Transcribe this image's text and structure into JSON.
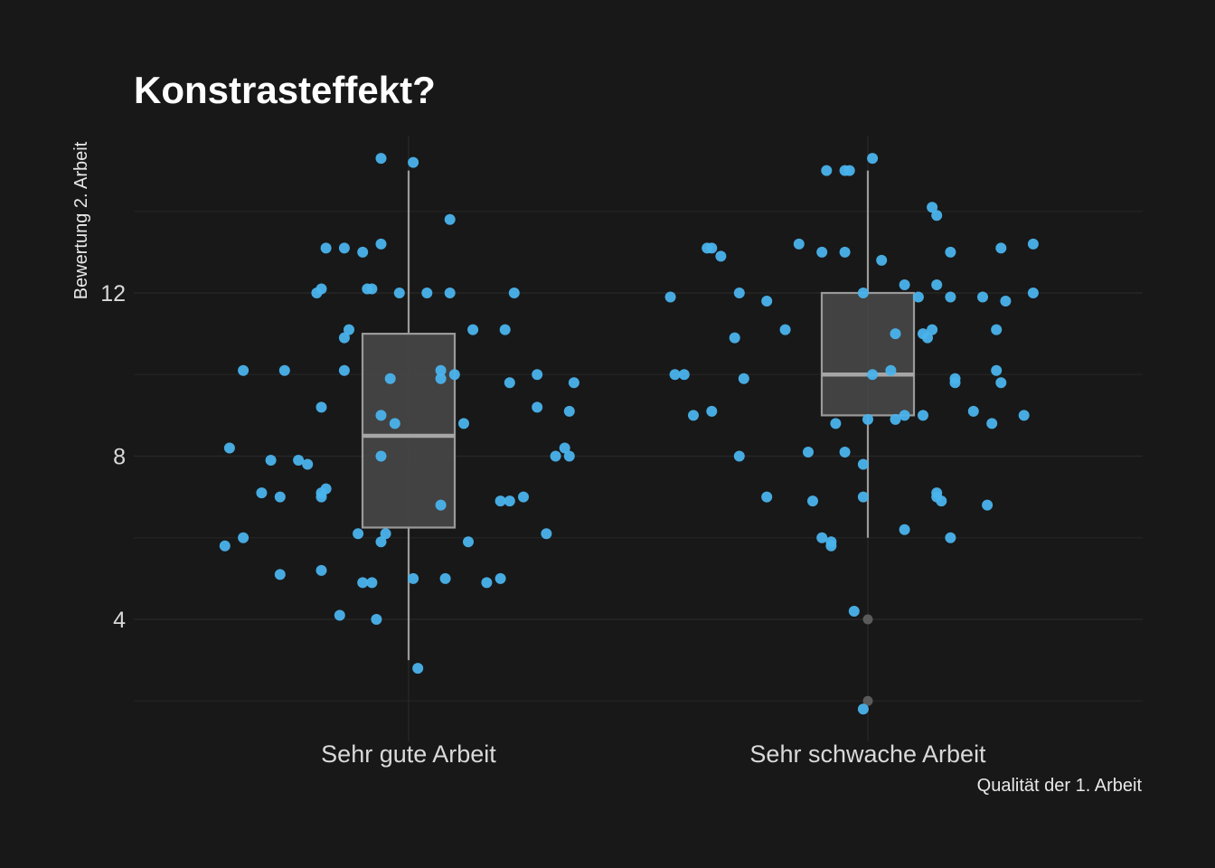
{
  "chart_data": {
    "type": "boxplot",
    "title": "Konstrasteffekt?",
    "xlabel": "Qualität der 1. Arbeit",
    "ylabel": "Bewertung 2. Arbeit",
    "categories": [
      "Sehr gute Arbeit",
      "Sehr schwache Arbeit"
    ],
    "yticks": [
      4,
      8,
      12
    ],
    "ylim": [
      1.1,
      16.6
    ],
    "grid": true,
    "boxes": [
      {
        "category": "Sehr gute Arbeit",
        "whisker_low": 3,
        "q1": 6.25,
        "median": 8.5,
        "q3": 11,
        "whisker_high": 15,
        "outliers": []
      },
      {
        "category": "Sehr schwache Arbeit",
        "whisker_low": 6,
        "q1": 9,
        "median": 10,
        "q3": 12,
        "whisker_high": 15,
        "outliers": [
          4,
          2
        ]
      }
    ],
    "points": [
      {
        "category": "Sehr gute Arbeit",
        "jitter": -0.36,
        "y": 10.1
      },
      {
        "category": "Sehr gute Arbeit",
        "jitter": -0.27,
        "y": 10.1
      },
      {
        "category": "Sehr gute Arbeit",
        "jitter": -0.39,
        "y": 8.2
      },
      {
        "category": "Sehr gute Arbeit",
        "jitter": -0.3,
        "y": 7.9
      },
      {
        "category": "Sehr gute Arbeit",
        "jitter": -0.24,
        "y": 7.9
      },
      {
        "category": "Sehr gute Arbeit",
        "jitter": -0.22,
        "y": 7.8
      },
      {
        "category": "Sehr gute Arbeit",
        "jitter": -0.32,
        "y": 7.1
      },
      {
        "category": "Sehr gute Arbeit",
        "jitter": -0.28,
        "y": 7.0
      },
      {
        "category": "Sehr gute Arbeit",
        "jitter": -0.36,
        "y": 6.0
      },
      {
        "category": "Sehr gute Arbeit",
        "jitter": -0.4,
        "y": 5.8
      },
      {
        "category": "Sehr gute Arbeit",
        "jitter": -0.28,
        "y": 5.1
      },
      {
        "category": "Sehr gute Arbeit",
        "jitter": -0.19,
        "y": 5.2
      },
      {
        "category": "Sehr gute Arbeit",
        "jitter": -0.15,
        "y": 4.1
      },
      {
        "category": "Sehr gute Arbeit",
        "jitter": -0.2,
        "y": 12.0
      },
      {
        "category": "Sehr gute Arbeit",
        "jitter": -0.19,
        "y": 12.1
      },
      {
        "category": "Sehr gute Arbeit",
        "jitter": -0.18,
        "y": 13.1
      },
      {
        "category": "Sehr gute Arbeit",
        "jitter": -0.14,
        "y": 13.1
      },
      {
        "category": "Sehr gute Arbeit",
        "jitter": -0.1,
        "y": 13.0
      },
      {
        "category": "Sehr gute Arbeit",
        "jitter": -0.06,
        "y": 13.2
      },
      {
        "category": "Sehr gute Arbeit",
        "jitter": -0.09,
        "y": 12.1
      },
      {
        "category": "Sehr gute Arbeit",
        "jitter": -0.08,
        "y": 12.1
      },
      {
        "category": "Sehr gute Arbeit",
        "jitter": -0.14,
        "y": 10.9
      },
      {
        "category": "Sehr gute Arbeit",
        "jitter": -0.13,
        "y": 11.1
      },
      {
        "category": "Sehr gute Arbeit",
        "jitter": -0.14,
        "y": 10.1
      },
      {
        "category": "Sehr gute Arbeit",
        "jitter": -0.19,
        "y": 9.2
      },
      {
        "category": "Sehr gute Arbeit",
        "jitter": -0.19,
        "y": 7.1
      },
      {
        "category": "Sehr gute Arbeit",
        "jitter": -0.18,
        "y": 7.2
      },
      {
        "category": "Sehr gute Arbeit",
        "jitter": -0.19,
        "y": 7.0
      },
      {
        "category": "Sehr gute Arbeit",
        "jitter": -0.11,
        "y": 6.1
      },
      {
        "category": "Sehr gute Arbeit",
        "jitter": -0.1,
        "y": 4.9
      },
      {
        "category": "Sehr gute Arbeit",
        "jitter": -0.08,
        "y": 4.9
      },
      {
        "category": "Sehr gute Arbeit",
        "jitter": -0.07,
        "y": 4.0
      },
      {
        "category": "Sehr gute Arbeit",
        "jitter": -0.06,
        "y": 15.3
      },
      {
        "category": "Sehr gute Arbeit",
        "jitter": 0.01,
        "y": 15.2
      },
      {
        "category": "Sehr gute Arbeit",
        "jitter": -0.02,
        "y": 12.0
      },
      {
        "category": "Sehr gute Arbeit",
        "jitter": 0.04,
        "y": 12.0
      },
      {
        "category": "Sehr gute Arbeit",
        "jitter": 0.09,
        "y": 12.0
      },
      {
        "category": "Sehr gute Arbeit",
        "jitter": 0.09,
        "y": 13.8
      },
      {
        "category": "Sehr gute Arbeit",
        "jitter": -0.04,
        "y": 9.9
      },
      {
        "category": "Sehr gute Arbeit",
        "jitter": 0.07,
        "y": 10.1
      },
      {
        "category": "Sehr gute Arbeit",
        "jitter": 0.07,
        "y": 9.9
      },
      {
        "category": "Sehr gute Arbeit",
        "jitter": 0.1,
        "y": 10.0
      },
      {
        "category": "Sehr gute Arbeit",
        "jitter": -0.06,
        "y": 9.0
      },
      {
        "category": "Sehr gute Arbeit",
        "jitter": -0.03,
        "y": 8.8
      },
      {
        "category": "Sehr gute Arbeit",
        "jitter": -0.06,
        "y": 8.0
      },
      {
        "category": "Sehr gute Arbeit",
        "jitter": -0.05,
        "y": 6.1
      },
      {
        "category": "Sehr gute Arbeit",
        "jitter": -0.06,
        "y": 5.9
      },
      {
        "category": "Sehr gute Arbeit",
        "jitter": 0.07,
        "y": 6.8
      },
      {
        "category": "Sehr gute Arbeit",
        "jitter": 0.01,
        "y": 5.0
      },
      {
        "category": "Sehr gute Arbeit",
        "jitter": 0.08,
        "y": 5.0
      },
      {
        "category": "Sehr gute Arbeit",
        "jitter": 0.02,
        "y": 2.8
      },
      {
        "category": "Sehr gute Arbeit",
        "jitter": 0.12,
        "y": 8.8
      },
      {
        "category": "Sehr gute Arbeit",
        "jitter": 0.13,
        "y": 5.9
      },
      {
        "category": "Sehr gute Arbeit",
        "jitter": 0.14,
        "y": 11.1
      },
      {
        "category": "Sehr gute Arbeit",
        "jitter": 0.21,
        "y": 11.1
      },
      {
        "category": "Sehr gute Arbeit",
        "jitter": 0.23,
        "y": 12.0
      },
      {
        "category": "Sehr gute Arbeit",
        "jitter": 0.22,
        "y": 9.8
      },
      {
        "category": "Sehr gute Arbeit",
        "jitter": 0.28,
        "y": 10.0
      },
      {
        "category": "Sehr gute Arbeit",
        "jitter": 0.28,
        "y": 9.2
      },
      {
        "category": "Sehr gute Arbeit",
        "jitter": 0.35,
        "y": 9.1
      },
      {
        "category": "Sehr gute Arbeit",
        "jitter": 0.36,
        "y": 9.8
      },
      {
        "category": "Sehr gute Arbeit",
        "jitter": 0.32,
        "y": 8.0
      },
      {
        "category": "Sehr gute Arbeit",
        "jitter": 0.34,
        "y": 8.2
      },
      {
        "category": "Sehr gute Arbeit",
        "jitter": 0.35,
        "y": 8.0
      },
      {
        "category": "Sehr gute Arbeit",
        "jitter": 0.2,
        "y": 6.9
      },
      {
        "category": "Sehr gute Arbeit",
        "jitter": 0.22,
        "y": 6.9
      },
      {
        "category": "Sehr gute Arbeit",
        "jitter": 0.25,
        "y": 7.0
      },
      {
        "category": "Sehr gute Arbeit",
        "jitter": 0.3,
        "y": 6.1
      },
      {
        "category": "Sehr gute Arbeit",
        "jitter": 0.17,
        "y": 4.9
      },
      {
        "category": "Sehr gute Arbeit",
        "jitter": 0.2,
        "y": 5.0
      },
      {
        "category": "Sehr schwache Arbeit",
        "jitter": -0.43,
        "y": 11.9
      },
      {
        "category": "Sehr schwache Arbeit",
        "jitter": -0.42,
        "y": 10.0
      },
      {
        "category": "Sehr schwache Arbeit",
        "jitter": -0.4,
        "y": 10.0
      },
      {
        "category": "Sehr schwache Arbeit",
        "jitter": -0.38,
        "y": 9.0
      },
      {
        "category": "Sehr schwache Arbeit",
        "jitter": -0.34,
        "y": 9.1
      },
      {
        "category": "Sehr schwache Arbeit",
        "jitter": -0.35,
        "y": 13.1
      },
      {
        "category": "Sehr schwache Arbeit",
        "jitter": -0.34,
        "y": 13.1
      },
      {
        "category": "Sehr schwache Arbeit",
        "jitter": -0.32,
        "y": 12.9
      },
      {
        "category": "Sehr schwache Arbeit",
        "jitter": -0.28,
        "y": 12.0
      },
      {
        "category": "Sehr schwache Arbeit",
        "jitter": -0.29,
        "y": 10.9
      },
      {
        "category": "Sehr schwache Arbeit",
        "jitter": -0.27,
        "y": 9.9
      },
      {
        "category": "Sehr schwache Arbeit",
        "jitter": -0.28,
        "y": 8.0
      },
      {
        "category": "Sehr schwache Arbeit",
        "jitter": -0.22,
        "y": 11.8
      },
      {
        "category": "Sehr schwache Arbeit",
        "jitter": -0.18,
        "y": 11.1
      },
      {
        "category": "Sehr schwache Arbeit",
        "jitter": -0.22,
        "y": 7.0
      },
      {
        "category": "Sehr schwache Arbeit",
        "jitter": -0.15,
        "y": 13.2
      },
      {
        "category": "Sehr schwache Arbeit",
        "jitter": -0.1,
        "y": 13.0
      },
      {
        "category": "Sehr schwache Arbeit",
        "jitter": -0.05,
        "y": 13.0
      },
      {
        "category": "Sehr schwache Arbeit",
        "jitter": -0.09,
        "y": 15.0
      },
      {
        "category": "Sehr schwache Arbeit",
        "jitter": -0.05,
        "y": 15.0
      },
      {
        "category": "Sehr schwache Arbeit",
        "jitter": -0.04,
        "y": 15.0
      },
      {
        "category": "Sehr schwache Arbeit",
        "jitter": -0.13,
        "y": 8.1
      },
      {
        "category": "Sehr schwache Arbeit",
        "jitter": -0.12,
        "y": 6.9
      },
      {
        "category": "Sehr schwache Arbeit",
        "jitter": -0.1,
        "y": 6.0
      },
      {
        "category": "Sehr schwache Arbeit",
        "jitter": -0.08,
        "y": 5.8
      },
      {
        "category": "Sehr schwache Arbeit",
        "jitter": -0.08,
        "y": 5.9
      },
      {
        "category": "Sehr schwache Arbeit",
        "jitter": -0.05,
        "y": 8.1
      },
      {
        "category": "Sehr schwache Arbeit",
        "jitter": -0.07,
        "y": 8.8
      },
      {
        "category": "Sehr schwache Arbeit",
        "jitter": -0.03,
        "y": 4.2
      },
      {
        "category": "Sehr schwache Arbeit",
        "jitter": -0.01,
        "y": 12.0
      },
      {
        "category": "Sehr schwache Arbeit",
        "jitter": -0.01,
        "y": 7.8
      },
      {
        "category": "Sehr schwache Arbeit",
        "jitter": -0.01,
        "y": 7.0
      },
      {
        "category": "Sehr schwache Arbeit",
        "jitter": 0.0,
        "y": 8.9
      },
      {
        "category": "Sehr schwache Arbeit",
        "jitter": -0.01,
        "y": 1.8
      },
      {
        "category": "Sehr schwache Arbeit",
        "jitter": 0.01,
        "y": 10.0
      },
      {
        "category": "Sehr schwache Arbeit",
        "jitter": 0.01,
        "y": 15.3
      },
      {
        "category": "Sehr schwache Arbeit",
        "jitter": 0.03,
        "y": 12.8
      },
      {
        "category": "Sehr schwache Arbeit",
        "jitter": 0.05,
        "y": 10.1
      },
      {
        "category": "Sehr schwache Arbeit",
        "jitter": 0.06,
        "y": 11.0
      },
      {
        "category": "Sehr schwache Arbeit",
        "jitter": 0.06,
        "y": 8.9
      },
      {
        "category": "Sehr schwache Arbeit",
        "jitter": 0.08,
        "y": 9.0
      },
      {
        "category": "Sehr schwache Arbeit",
        "jitter": 0.08,
        "y": 12.2
      },
      {
        "category": "Sehr schwache Arbeit",
        "jitter": 0.08,
        "y": 6.2
      },
      {
        "category": "Sehr schwache Arbeit",
        "jitter": 0.11,
        "y": 11.9
      },
      {
        "category": "Sehr schwache Arbeit",
        "jitter": 0.12,
        "y": 9.0
      },
      {
        "category": "Sehr schwache Arbeit",
        "jitter": 0.12,
        "y": 11.0
      },
      {
        "category": "Sehr schwache Arbeit",
        "jitter": 0.13,
        "y": 10.9
      },
      {
        "category": "Sehr schwache Arbeit",
        "jitter": 0.14,
        "y": 11.1
      },
      {
        "category": "Sehr schwache Arbeit",
        "jitter": 0.15,
        "y": 12.2
      },
      {
        "category": "Sehr schwache Arbeit",
        "jitter": 0.15,
        "y": 7.1
      },
      {
        "category": "Sehr schwache Arbeit",
        "jitter": 0.15,
        "y": 7.0
      },
      {
        "category": "Sehr schwache Arbeit",
        "jitter": 0.16,
        "y": 6.9
      },
      {
        "category": "Sehr schwache Arbeit",
        "jitter": 0.14,
        "y": 14.1
      },
      {
        "category": "Sehr schwache Arbeit",
        "jitter": 0.15,
        "y": 13.9
      },
      {
        "category": "Sehr schwache Arbeit",
        "jitter": 0.18,
        "y": 13.0
      },
      {
        "category": "Sehr schwache Arbeit",
        "jitter": 0.18,
        "y": 11.9
      },
      {
        "category": "Sehr schwache Arbeit",
        "jitter": 0.19,
        "y": 9.9
      },
      {
        "category": "Sehr schwache Arbeit",
        "jitter": 0.19,
        "y": 9.8
      },
      {
        "category": "Sehr schwache Arbeit",
        "jitter": 0.18,
        "y": 6.0
      },
      {
        "category": "Sehr schwache Arbeit",
        "jitter": 0.23,
        "y": 9.1
      },
      {
        "category": "Sehr schwache Arbeit",
        "jitter": 0.25,
        "y": 11.9
      },
      {
        "category": "Sehr schwache Arbeit",
        "jitter": 0.26,
        "y": 6.8
      },
      {
        "category": "Sehr schwache Arbeit",
        "jitter": 0.28,
        "y": 11.1
      },
      {
        "category": "Sehr schwache Arbeit",
        "jitter": 0.28,
        "y": 10.1
      },
      {
        "category": "Sehr schwache Arbeit",
        "jitter": 0.29,
        "y": 9.8
      },
      {
        "category": "Sehr schwache Arbeit",
        "jitter": 0.27,
        "y": 8.8
      },
      {
        "category": "Sehr schwache Arbeit",
        "jitter": 0.29,
        "y": 13.1
      },
      {
        "category": "Sehr schwache Arbeit",
        "jitter": 0.3,
        "y": 11.8
      },
      {
        "category": "Sehr schwache Arbeit",
        "jitter": 0.34,
        "y": 9.0
      },
      {
        "category": "Sehr schwache Arbeit",
        "jitter": 0.36,
        "y": 13.2
      },
      {
        "category": "Sehr schwache Arbeit",
        "jitter": 0.36,
        "y": 12.0
      }
    ]
  },
  "colors": {
    "background": "#181818",
    "gridline": "#262626",
    "point": "#4ab3ec",
    "box_fill": "#4a4a4a",
    "box_stroke": "#9a9a9a",
    "median": "#a6a6a6",
    "outlier": "#5a5a5a"
  }
}
